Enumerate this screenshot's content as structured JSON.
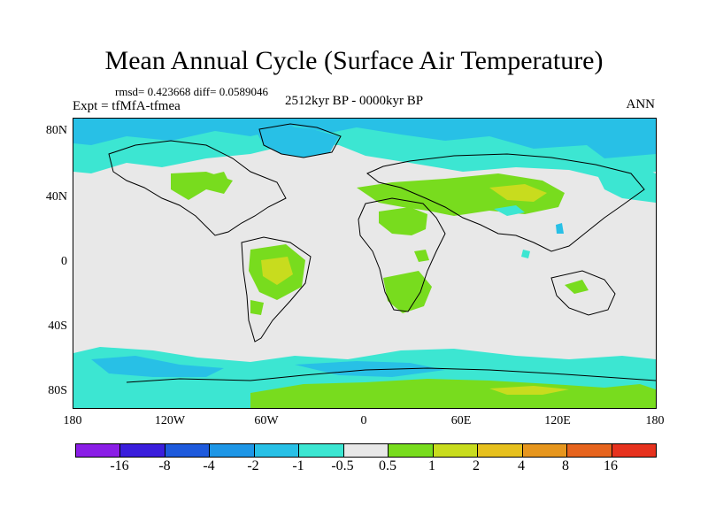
{
  "title": "Mean Annual Cycle (Surface Air Temperature)",
  "stats": "rmsd= 0.423668 diff= 0.0589046",
  "experiment": "Expt = tfMfA-tfmea",
  "period": "2512kyr BP - 0000kyr BP",
  "season": "ANN",
  "lon_labels": [
    "180",
    "120W",
    "60W",
    "0",
    "60E",
    "120E",
    "180"
  ],
  "lat_labels": [
    "80N",
    "40N",
    "0",
    "40S",
    "80S"
  ],
  "colorbar": {
    "labels": [
      "-16",
      "-8",
      "-4",
      "-2",
      "-1",
      "-0.5",
      "0.5",
      "1",
      "2",
      "4",
      "8",
      "16"
    ],
    "colors": [
      "#8a1ee6",
      "#3a1edc",
      "#1e5adc",
      "#1e96e6",
      "#28c0e6",
      "#3ce6d2",
      "#e8e8e8",
      "#78dc1e",
      "#c8dc1e",
      "#e6c01e",
      "#e6961e",
      "#e6641e",
      "#e6321e"
    ]
  },
  "map_colors": {
    "neutral": "#e8e8e8",
    "cool_1": "#3ce6d2",
    "cool_2": "#28c0e6",
    "warm_1": "#78dc1e",
    "warm_2": "#c8dc1e"
  }
}
